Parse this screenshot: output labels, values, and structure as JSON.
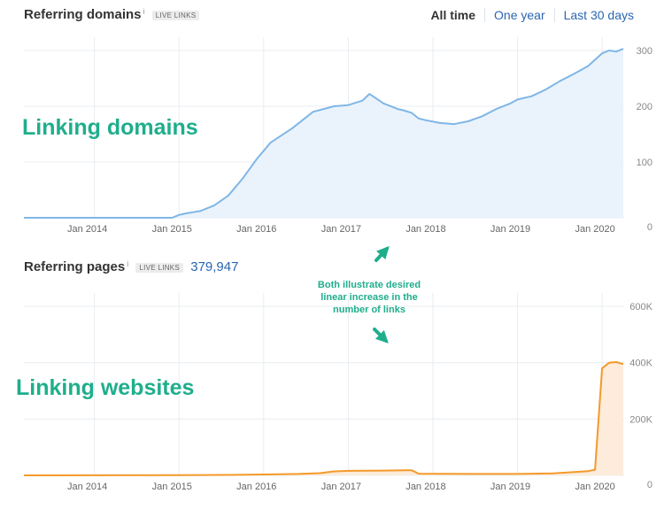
{
  "top": {
    "title": "Referring domains",
    "info": "i",
    "badge": "LIVE LINKS",
    "range_tabs": [
      "All time",
      "One year",
      "Last 30 days"
    ]
  },
  "bottom": {
    "title": "Referring pages",
    "info": "i",
    "badge": "LIVE LINKS",
    "total": "379,947"
  },
  "annotations": {
    "top_overlay": "Linking domains",
    "bottom_overlay": "Linking websites",
    "note_lines": [
      "Both illustrate desired",
      "linear increase in the",
      "number of links"
    ]
  },
  "colors": {
    "domains_line": "#7fb6e6",
    "domains_fill": "#eaf3fc",
    "pages_line": "#f39a2a",
    "pages_fill": "#fdebdb",
    "annotation": "#1fae8c",
    "grid": "#e9edf1"
  },
  "chart_data": [
    {
      "type": "area",
      "name": "Referring domains",
      "title": "",
      "xlabel": "",
      "ylabel": "",
      "x_ticks": [
        "Jan 2014",
        "Jan 2015",
        "Jan 2016",
        "Jan 2017",
        "Jan 2018",
        "Jan 2019",
        "Jan 2020"
      ],
      "y_ticks": [
        "0",
        "100",
        "200",
        "300"
      ],
      "ylim": [
        0,
        300
      ],
      "xlim": [
        "2013-03",
        "2020-04"
      ],
      "grid": true,
      "legend": "none",
      "series": [
        {
          "x": [
            "2013-03",
            "2013-06",
            "2013-09",
            "2014-01",
            "2014-06",
            "2014-09",
            "2014-12",
            "2015-01",
            "2015-02",
            "2015-03",
            "2015-04",
            "2015-06",
            "2015-08",
            "2015-10",
            "2015-12",
            "2016-02",
            "2016-05",
            "2016-08",
            "2016-11",
            "2017-01",
            "2017-03",
            "2017-04",
            "2017-06",
            "2017-08",
            "2017-09",
            "2017-10",
            "2017-11",
            "2017-12",
            "2018-02",
            "2018-04",
            "2018-06",
            "2018-08",
            "2018-10",
            "2018-12",
            "2019-01",
            "2019-03",
            "2019-05",
            "2019-07",
            "2019-09",
            "2019-11",
            "2020-01",
            "2020-02",
            "2020-03",
            "2020-04"
          ],
          "values": [
            0,
            0,
            0,
            0,
            0,
            0,
            0,
            5,
            8,
            10,
            12,
            22,
            40,
            70,
            105,
            135,
            160,
            190,
            200,
            202,
            210,
            222,
            205,
            195,
            192,
            188,
            178,
            175,
            170,
            168,
            173,
            182,
            195,
            205,
            212,
            218,
            230,
            245,
            258,
            272,
            295,
            300,
            298,
            303
          ]
        }
      ]
    },
    {
      "type": "area",
      "name": "Referring pages",
      "title": "",
      "xlabel": "",
      "ylabel": "",
      "x_ticks": [
        "Jan 2014",
        "Jan 2015",
        "Jan 2016",
        "Jan 2017",
        "Jan 2018",
        "Jan 2019",
        "Jan 2020"
      ],
      "y_ticks": [
        "0",
        "200K",
        "400K",
        "600K"
      ],
      "ylim": [
        0,
        600000
      ],
      "xlim": [
        "2013-03",
        "2020-04"
      ],
      "grid": true,
      "legend": "none",
      "series": [
        {
          "x": [
            "2013-03",
            "2015-01",
            "2015-08",
            "2016-01",
            "2016-06",
            "2016-09",
            "2016-11",
            "2017-01",
            "2017-06",
            "2017-09",
            "2017-10",
            "2017-11",
            "2018-06",
            "2019-01",
            "2019-06",
            "2019-09",
            "2019-11",
            "2019-12",
            "2020-01",
            "2020-02",
            "2020-03",
            "2020-04"
          ],
          "values": [
            0,
            500,
            1500,
            3000,
            5000,
            8000,
            14000,
            16000,
            17000,
            18000,
            18000,
            6000,
            5000,
            5000,
            7000,
            12000,
            15000,
            20000,
            380000,
            400000,
            402000,
            395000
          ]
        }
      ]
    }
  ]
}
